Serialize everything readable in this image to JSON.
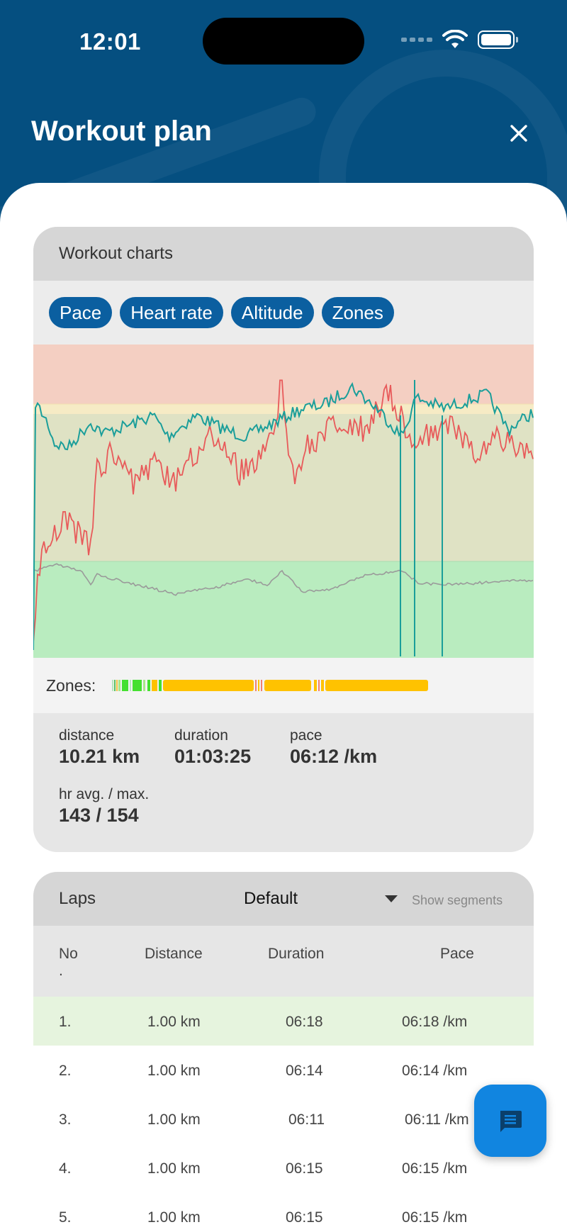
{
  "status": {
    "time": "12:01"
  },
  "header": {
    "title": "Workout plan"
  },
  "charts_card": {
    "title": "Workout charts",
    "chips": [
      "Pace",
      "Heart rate",
      "Altitude",
      "Zones"
    ],
    "zones_label": "Zones:",
    "stats": [
      {
        "label": "distance",
        "value": "10.21 km"
      },
      {
        "label": "duration",
        "value": "01:03:25"
      },
      {
        "label": "pace",
        "value": "06:12 /km"
      },
      {
        "label": "hr avg. / max.",
        "value": "143 / 154"
      }
    ]
  },
  "laps_card": {
    "title": "Laps",
    "selector": "Default",
    "segments_label": "Show segments",
    "columns": {
      "no": "No",
      "no_dot": ".",
      "distance": "Distance",
      "duration": "Duration",
      "pace": "Pace"
    },
    "rows": [
      {
        "no": "1.",
        "distance": "1.00 km",
        "duration": "06:18",
        "pace": "06:18 /km"
      },
      {
        "no": "2.",
        "distance": "1.00 km",
        "duration": "06:14",
        "pace": "06:14 /km"
      },
      {
        "no": "3.",
        "distance": "1.00 km",
        "duration": "06:11",
        "pace": "06:11 /km"
      },
      {
        "no": "4.",
        "distance": "1.00 km",
        "duration": "06:15",
        "pace": "06:15 /km"
      },
      {
        "no": "5.",
        "distance": "1.00 km",
        "duration": "06:15",
        "pace": "06:15 /km"
      }
    ]
  },
  "colors": {
    "brand_blue": "#0b5fa0",
    "pace_line": "#1a9e9a",
    "heart_line": "#e85a5a",
    "altitude_line": "#9a9a9a",
    "zone_red": "#f4cfc2",
    "zone_yellow": "#f6ebc5",
    "zone_mid": "#dfe2c4",
    "zone_green": "#b9ecbf",
    "zones_orange": "#ffc200",
    "fab_blue": "#1185e0"
  },
  "icons": {
    "close": "close-icon",
    "chat": "chat-icon",
    "wifi": "wifi-icon",
    "battery": "battery-icon",
    "dropdown": "chevron-down-icon"
  }
}
